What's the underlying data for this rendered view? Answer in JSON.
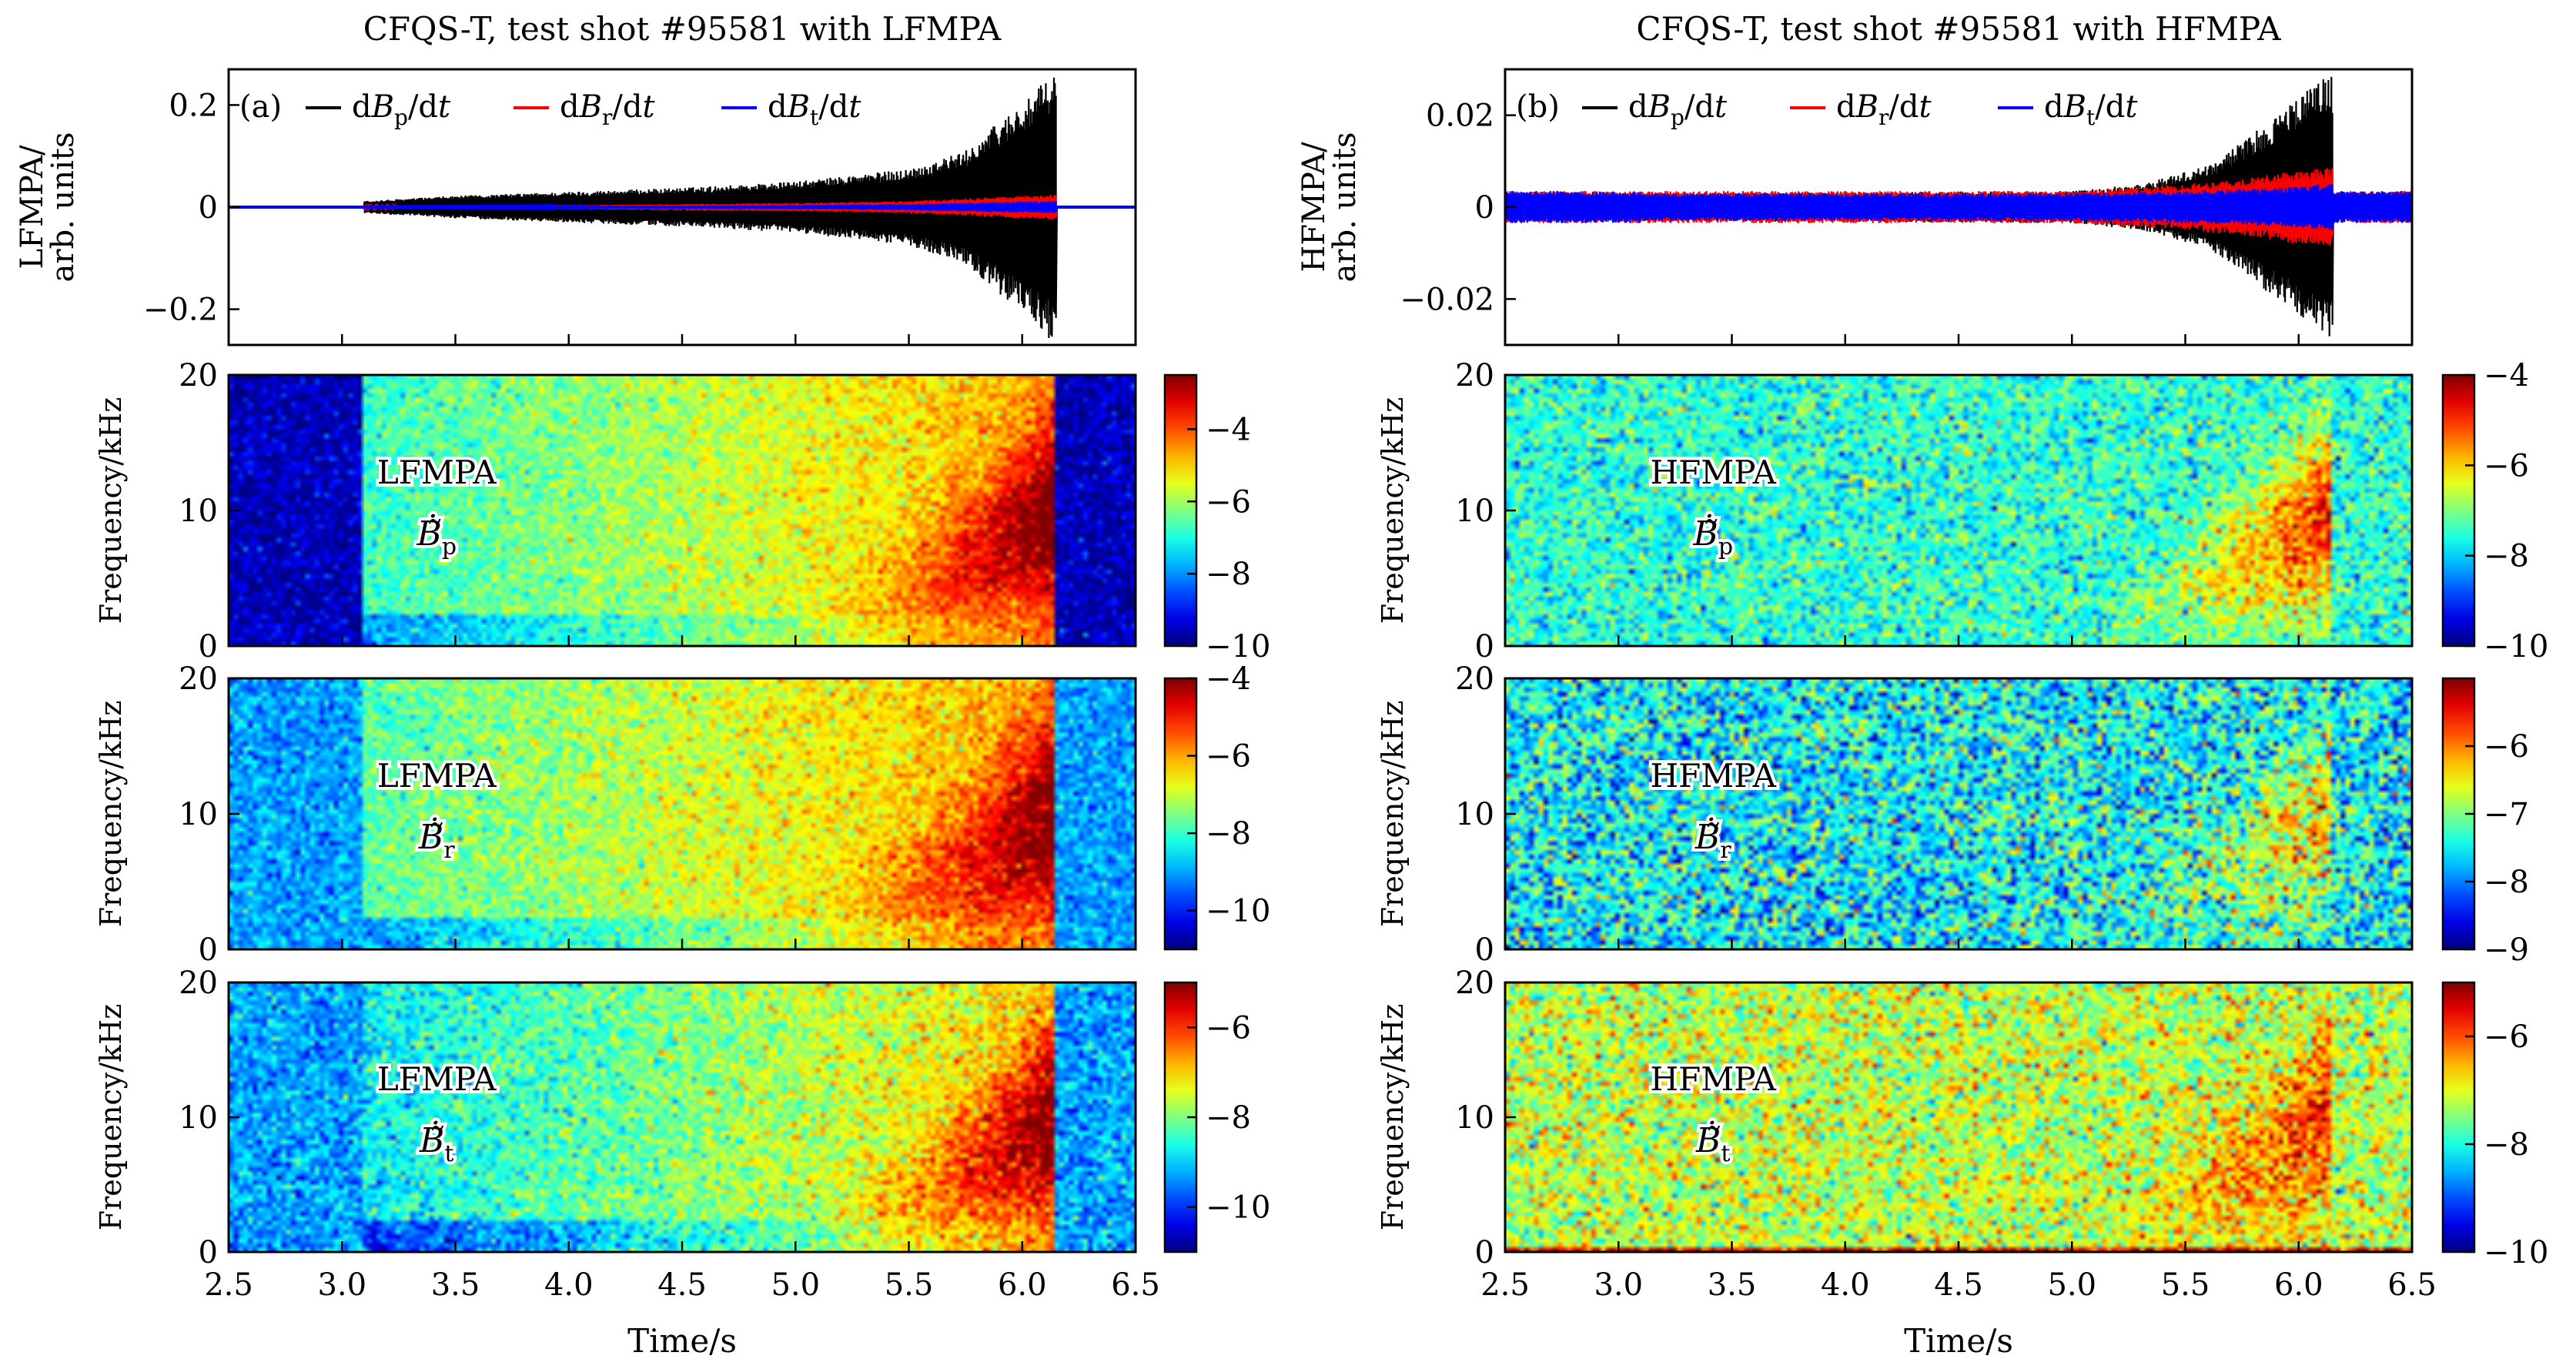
{
  "chart_data": [
    {
      "type": "line",
      "panel": "a",
      "title": "CFQS-T, test shot #95581 with LFMPA",
      "panel_label": "(a)",
      "ylabel_line1": "LFMPA/",
      "ylabel_line2": "arb. units",
      "xlim": [
        2.5,
        6.5
      ],
      "ylim": [
        -0.27,
        0.27
      ],
      "yticks": [
        0.2,
        0,
        -0.2
      ],
      "ytick_labels": [
        "0.2",
        "0",
        "−0.2"
      ],
      "xticks": [
        2.5,
        3.0,
        3.5,
        4.0,
        4.5,
        5.0,
        5.5,
        6.0,
        6.5
      ],
      "plasma_start": 3.1,
      "plasma_end": 6.15,
      "noise_floor": 0.0008,
      "legend_position": "top-left",
      "series": [
        {
          "name": "dB_p/dt",
          "label_main": "dB",
          "label_sub": "p",
          "label_tail": "/dt",
          "color": "#000000",
          "envelope_t": [
            3.1,
            3.5,
            4.0,
            4.5,
            5.0,
            5.5,
            5.75,
            5.9,
            6.05,
            6.12
          ],
          "envelope_amp": [
            0.012,
            0.022,
            0.03,
            0.038,
            0.05,
            0.075,
            0.11,
            0.17,
            0.22,
            0.26
          ]
        },
        {
          "name": "dB_r/dt",
          "label_main": "dB",
          "label_sub": "r",
          "label_tail": "/dt",
          "color": "#ff0000",
          "envelope_t": [
            3.1,
            4.0,
            5.0,
            5.5,
            5.9,
            6.12
          ],
          "envelope_amp": [
            0.002,
            0.004,
            0.008,
            0.012,
            0.02,
            0.025
          ]
        },
        {
          "name": "dB_t/dt",
          "label_main": "dB",
          "label_sub": "t",
          "label_tail": "/dt",
          "color": "#0000ff",
          "envelope_t": [
            3.1,
            4.0,
            5.0,
            5.5,
            5.9,
            6.12
          ],
          "envelope_amp": [
            0.001,
            0.002,
            0.004,
            0.006,
            0.01,
            0.012
          ]
        }
      ]
    },
    {
      "type": "line",
      "panel": "b",
      "title": "CFQS-T, test shot #95581 with HFMPA",
      "panel_label": "(b)",
      "ylabel_line1": "HFMPA/",
      "ylabel_line2": "arb. units",
      "xlim": [
        2.5,
        6.5
      ],
      "ylim": [
        -0.03,
        0.03
      ],
      "yticks": [
        0.02,
        0,
        -0.02
      ],
      "ytick_labels": [
        "0.02",
        "0",
        "−0.02"
      ],
      "xticks": [
        2.5,
        3.0,
        3.5,
        4.0,
        4.5,
        5.0,
        5.5,
        6.0,
        6.5
      ],
      "plasma_start": 3.1,
      "plasma_end": 6.15,
      "noise_floor": 0.0035,
      "legend_position": "top-left",
      "series": [
        {
          "name": "dB_p/dt",
          "label_main": "dB",
          "label_sub": "p",
          "label_tail": "/dt",
          "color": "#000000",
          "envelope_t": [
            3.1,
            5.0,
            5.3,
            5.6,
            5.8,
            6.0,
            6.12
          ],
          "envelope_amp": [
            0.003,
            0.0035,
            0.005,
            0.009,
            0.016,
            0.024,
            0.029
          ]
        },
        {
          "name": "dB_r/dt",
          "label_main": "dB",
          "label_sub": "r",
          "label_tail": "/dt",
          "color": "#ff0000",
          "envelope_t": [
            3.1,
            5.0,
            5.5,
            5.8,
            6.0,
            6.12
          ],
          "envelope_amp": [
            0.0035,
            0.0035,
            0.005,
            0.0065,
            0.008,
            0.0085
          ]
        },
        {
          "name": "dB_t/dt",
          "label_main": "dB",
          "label_sub": "t",
          "label_tail": "/dt",
          "color": "#0000ff",
          "envelope_t": [
            3.1,
            5.0,
            5.5,
            5.8,
            6.0,
            6.12
          ],
          "envelope_amp": [
            0.003,
            0.003,
            0.0035,
            0.004,
            0.0045,
            0.005
          ]
        }
      ]
    },
    {
      "type": "heatmap",
      "column": "left",
      "row": 1,
      "annotation": "LFMPA",
      "quantity_sub": "p",
      "ylabel": "Frequency/kHz",
      "xlim": [
        2.5,
        6.5
      ],
      "ylim": [
        0,
        20
      ],
      "yticks": [
        0,
        10,
        20
      ],
      "xticks": [
        2.5,
        3.0,
        3.5,
        4.0,
        4.5,
        5.0,
        5.5,
        6.0,
        6.5
      ],
      "colorbar": {
        "range": [
          -10,
          -2.5
        ],
        "ticks": [
          -4,
          -6,
          -8,
          -10
        ],
        "tick_labels": [
          "−4",
          "−6",
          "−8",
          "−10"
        ]
      },
      "background_off": -9.6,
      "background_on": -6.8,
      "peak": -3.0,
      "plasma_start": 3.1,
      "plasma_end": 6.15
    },
    {
      "type": "heatmap",
      "column": "left",
      "row": 2,
      "annotation": "LFMPA",
      "quantity_sub": "r",
      "ylabel": "Frequency/kHz",
      "xlim": [
        2.5,
        6.5
      ],
      "ylim": [
        0,
        20
      ],
      "yticks": [
        0,
        10,
        20
      ],
      "xticks": [
        2.5,
        3.0,
        3.5,
        4.0,
        4.5,
        5.0,
        5.5,
        6.0,
        6.5
      ],
      "colorbar": {
        "range": [
          -11,
          -4
        ],
        "ticks": [
          -4,
          -6,
          -8,
          -10
        ],
        "tick_labels": [
          "−4",
          "−6",
          "−8",
          "−10"
        ]
      },
      "background_off": -9.0,
      "background_on": -7.8,
      "peak": -4.5,
      "plasma_start": 3.1,
      "plasma_end": 6.15
    },
    {
      "type": "heatmap",
      "column": "left",
      "row": 3,
      "annotation": "LFMPA",
      "quantity_sub": "t",
      "ylabel": "Frequency/kHz",
      "xlim": [
        2.5,
        6.5
      ],
      "ylim": [
        0,
        20
      ],
      "yticks": [
        0,
        10,
        20
      ],
      "xticks": [
        2.5,
        3.0,
        3.5,
        4.0,
        4.5,
        5.0,
        5.5,
        6.0,
        6.5
      ],
      "xlabel": "Time/s",
      "xtick_labels": [
        "2.5",
        "3.0",
        "3.5",
        "4.0",
        "4.5",
        "5.0",
        "5.5",
        "6.0",
        "6.5"
      ],
      "colorbar": {
        "range": [
          -11,
          -5
        ],
        "ticks": [
          -6,
          -8,
          -10
        ],
        "tick_labels": [
          "−6",
          "−8",
          "−10"
        ]
      },
      "background_off": -9.3,
      "background_on": -8.8,
      "peak": -5.6,
      "plasma_start": 3.1,
      "plasma_end": 6.15
    },
    {
      "type": "heatmap",
      "column": "right",
      "row": 1,
      "annotation": "HFMPA",
      "quantity_sub": "p",
      "ylabel": "Frequency/kHz",
      "xlim": [
        2.5,
        6.5
      ],
      "ylim": [
        0,
        20
      ],
      "yticks": [
        0,
        10,
        20
      ],
      "xticks": [
        2.5,
        3.0,
        3.5,
        4.0,
        4.5,
        5.0,
        5.5,
        6.0,
        6.5
      ],
      "colorbar": {
        "range": [
          -10,
          -4
        ],
        "ticks": [
          -4,
          -6,
          -8,
          -10
        ],
        "tick_labels": [
          "−4",
          "−6",
          "−8",
          "−10"
        ]
      },
      "background_off": -7.5,
      "background_on": -7.5,
      "peak": -4.8,
      "plasma_start": 3.1,
      "plasma_end": 6.15
    },
    {
      "type": "heatmap",
      "column": "right",
      "row": 2,
      "annotation": "HFMPA",
      "quantity_sub": "r",
      "ylabel": "Frequency/kHz",
      "xlim": [
        2.5,
        6.5
      ],
      "ylim": [
        0,
        20
      ],
      "yticks": [
        0,
        10,
        20
      ],
      "xticks": [
        2.5,
        3.0,
        3.5,
        4.0,
        4.5,
        5.0,
        5.5,
        6.0,
        6.5
      ],
      "colorbar": {
        "range": [
          -9,
          -5
        ],
        "ticks": [
          -6,
          -7,
          -8,
          -9
        ],
        "tick_labels": [
          "−6",
          "−7",
          "−8",
          "−9"
        ]
      },
      "background_off": -7.5,
      "background_on": -7.5,
      "peak": -6.2,
      "plasma_start": 3.1,
      "plasma_end": 6.15
    },
    {
      "type": "heatmap",
      "column": "right",
      "row": 3,
      "annotation": "HFMPA",
      "quantity_sub": "t",
      "ylabel": "Frequency/kHz",
      "xlim": [
        2.5,
        6.5
      ],
      "ylim": [
        0,
        20
      ],
      "yticks": [
        0,
        10,
        20
      ],
      "xticks": [
        2.5,
        3.0,
        3.5,
        4.0,
        4.5,
        5.0,
        5.5,
        6.0,
        6.5
      ],
      "xlabel": "Time/s",
      "xtick_labels": [
        "2.5",
        "3.0",
        "3.5",
        "4.0",
        "4.5",
        "5.0",
        "5.5",
        "6.0",
        "6.5"
      ],
      "colorbar": {
        "range": [
          -10,
          -5
        ],
        "ticks": [
          -6,
          -8,
          -10
        ],
        "tick_labels": [
          "−6",
          "−8",
          "−10"
        ]
      },
      "background_off": -7.2,
      "background_on": -7.2,
      "peak": -5.8,
      "plasma_start": 3.1,
      "plasma_end": 6.15
    }
  ]
}
